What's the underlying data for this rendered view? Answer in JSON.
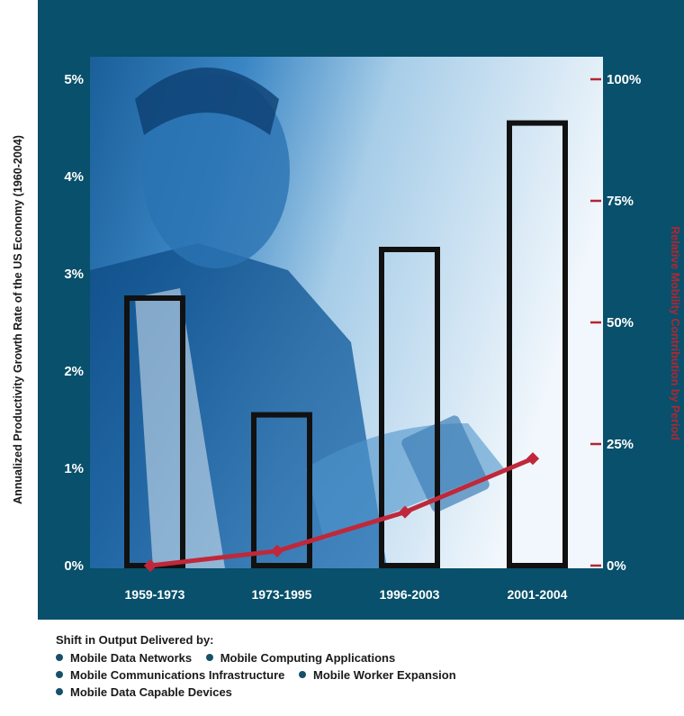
{
  "chart_data": {
    "type": "bar",
    "categories": [
      "1959-1973",
      "1973-1995",
      "1996-2003",
      "2001-2004"
    ],
    "series": [
      {
        "type": "bar",
        "axis": "left",
        "values": [
          2.75,
          1.55,
          3.25,
          4.55
        ]
      },
      {
        "type": "line",
        "axis": "right",
        "values": [
          0,
          3,
          11,
          22
        ],
        "color": "#c0283a"
      }
    ],
    "ylabel": "Annualized Productivity Growth Rate of the US Economy (1960-2004)",
    "ylabel_right": "Relative Mobility Contribution by Period",
    "ylim": [
      0,
      5
    ],
    "ylim_right": [
      0,
      100
    ],
    "yticks": [
      "0%",
      "1%",
      "2%",
      "3%",
      "4%",
      "5%"
    ],
    "yticks_right": [
      "0%",
      "25%",
      "50%",
      "75%",
      "100%"
    ],
    "grid": false,
    "legend_position": "bottom",
    "colors": {
      "frame": "#08506b",
      "bar_outline": "#111111",
      "line": "#c0283a",
      "right_axis": "#b32630"
    }
  },
  "legend": {
    "title": "Shift in Output Delivered by:",
    "rows": [
      [
        "Mobile Data Networks",
        "Mobile Computing Applications"
      ],
      [
        "Mobile Communications Infrastructure",
        "Mobile Worker Expansion"
      ],
      [
        "Mobile Data Capable Devices"
      ]
    ]
  }
}
